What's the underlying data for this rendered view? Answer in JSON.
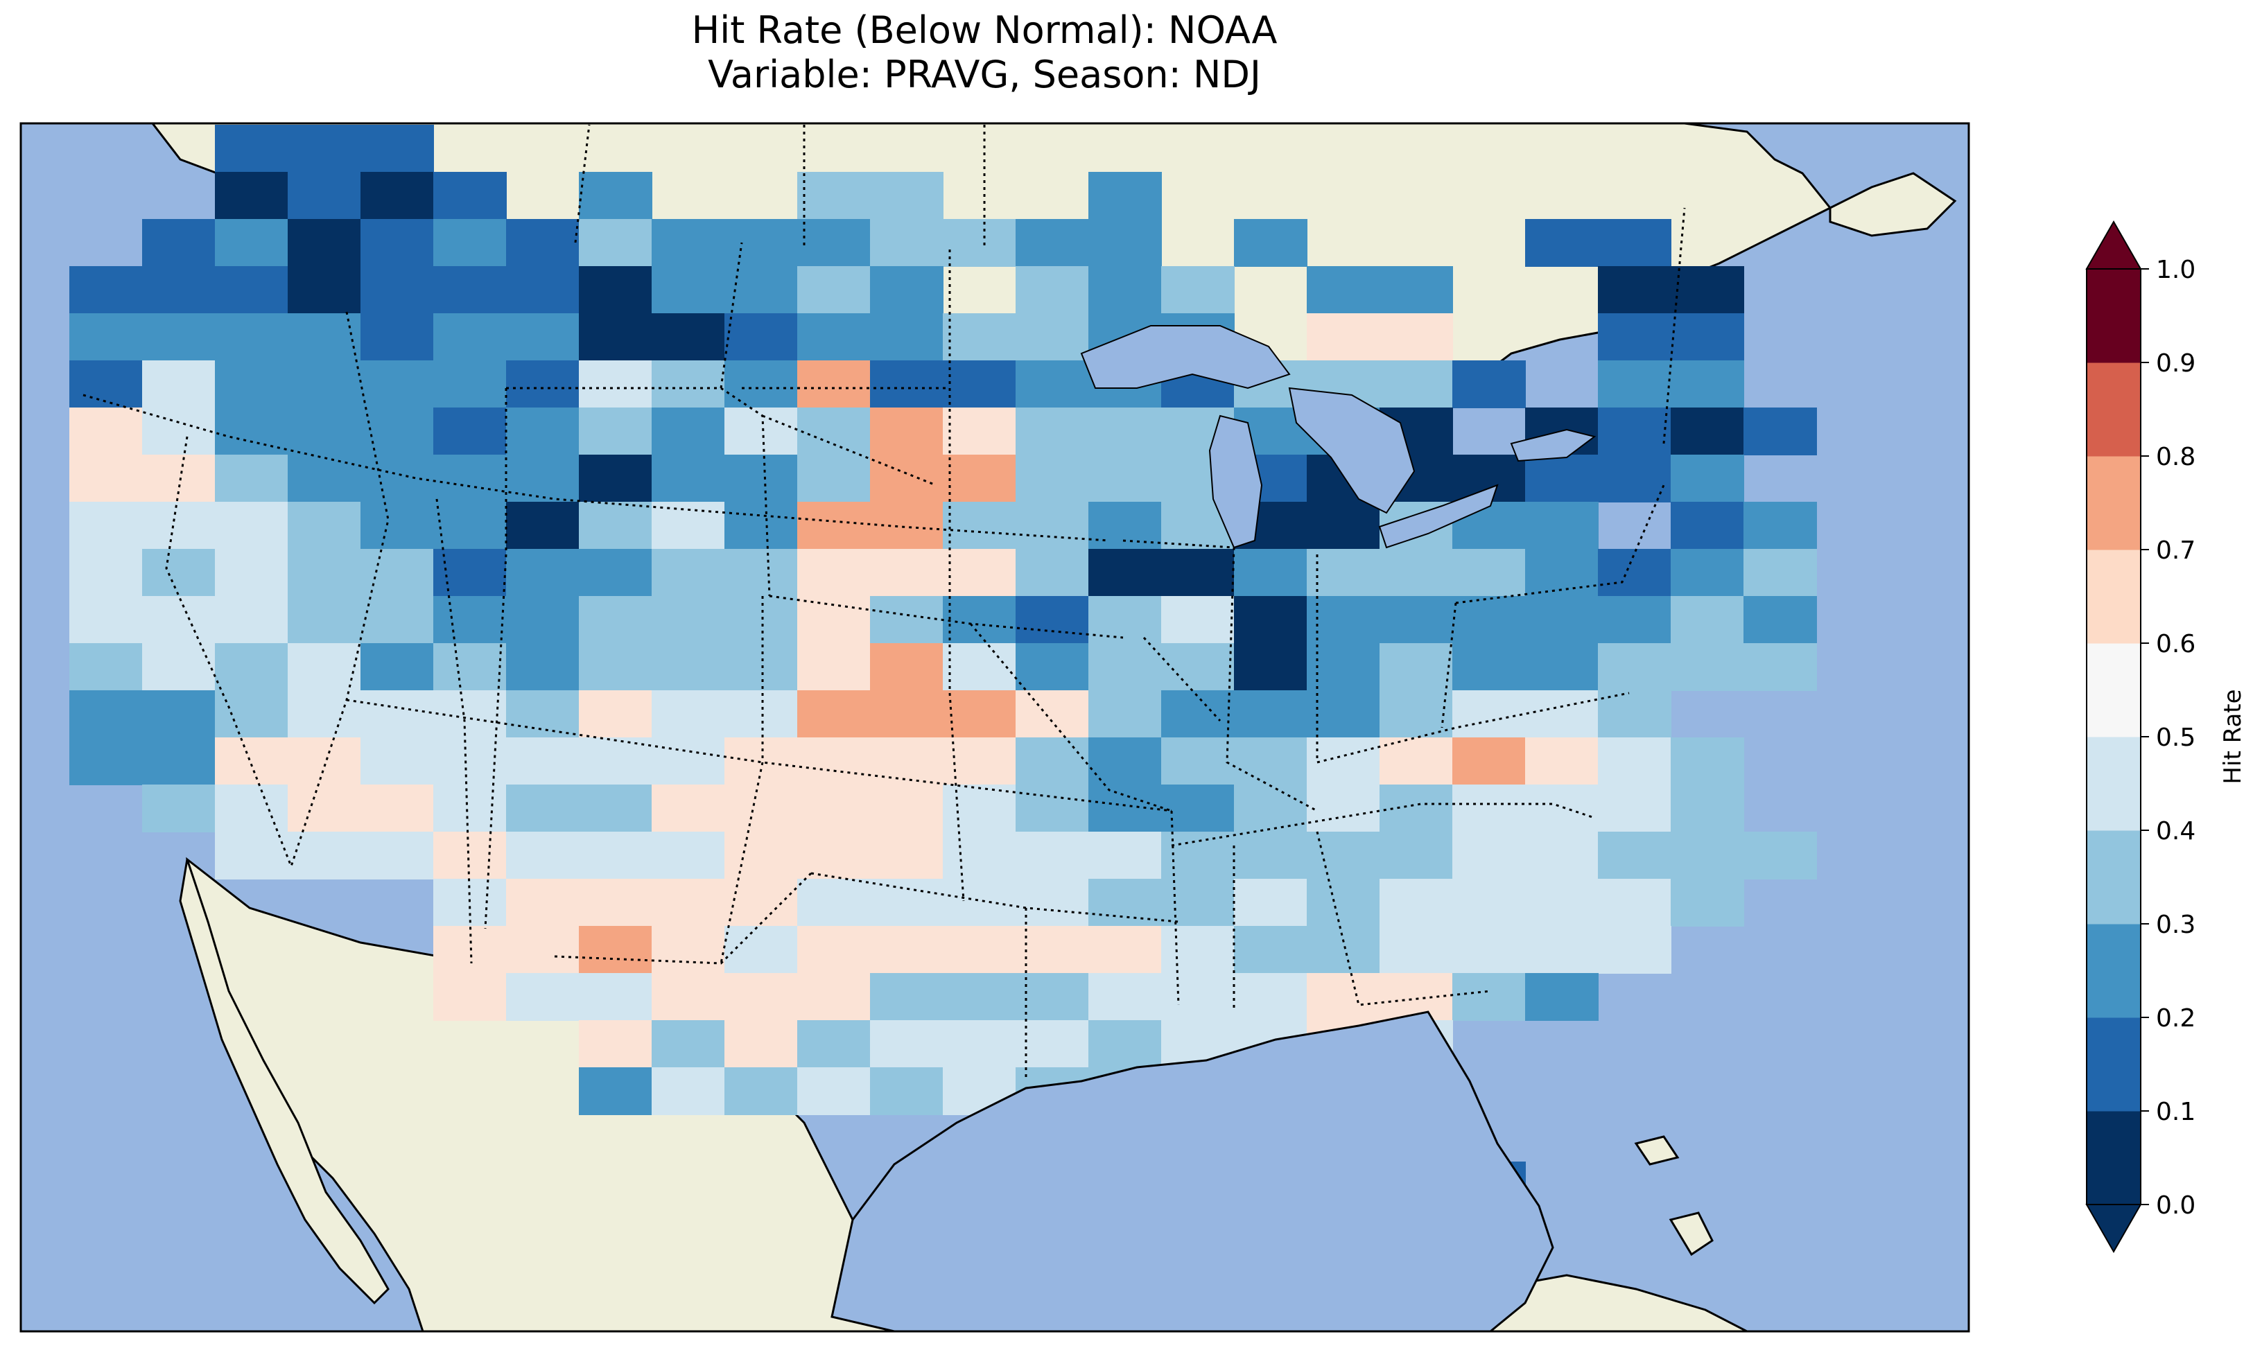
{
  "title": {
    "line1": "Hit Rate (Below Normal): NOAA",
    "line2": "Variable: PRAVG, Season: NDJ"
  },
  "colorbar": {
    "label": "Hit Rate",
    "ticks": [
      "0.0",
      "0.1",
      "0.2",
      "0.3",
      "0.4",
      "0.5",
      "0.6",
      "0.7",
      "0.8",
      "0.9",
      "1.0"
    ],
    "bins": [
      "#053061",
      "#2166ac",
      "#4393c3",
      "#92c5de",
      "#d1e5f0",
      "#f7f7f7",
      "#fddbc7",
      "#f4a582",
      "#d6604d",
      "#b2182b",
      "#67001f"
    ],
    "extend": "both",
    "under_color": "#053061",
    "over_color": "#67001f"
  },
  "map": {
    "ocean_color": "#97b6e1",
    "land_color": "#efefdb",
    "lake_color": "#97b6e1",
    "field_colors": [
      "#053061",
      "#2166ac",
      "#4393c3",
      "#92c5de",
      "#d1e5f0",
      "#fbe3d6",
      "#f4a582",
      "#d6604d",
      "#b2182b"
    ],
    "hit_rate_grid": [
      "  111                   ",
      "  0101 2  33  2         ",
      " 12012132223322 2   11  ",
      "111011102232 323 22  00 ",
      "2222122001223322 55  11 ",
      "14222214326112213331 22 ",
      "5422212324365333220 0101",
      "55322220223663331000112 ",
      "444322034266332300322 12",
      "434331223355530023332123",
      "444332233353213402222232",
      "343423233356423302322333",
      "2234443544666532223443  ",
      "22554444455553233456543 ",
      " 3455433555543223434443 ",
      "  4445444555444333344333",
      "     455554444334344443 ",
      "     55654555554334444  ",
      "     5445553334445532   ",
      "       535344434454     ",
      "       24343433 43      ",
      "                 32     ",
      "                 221    "
    ]
  }
}
